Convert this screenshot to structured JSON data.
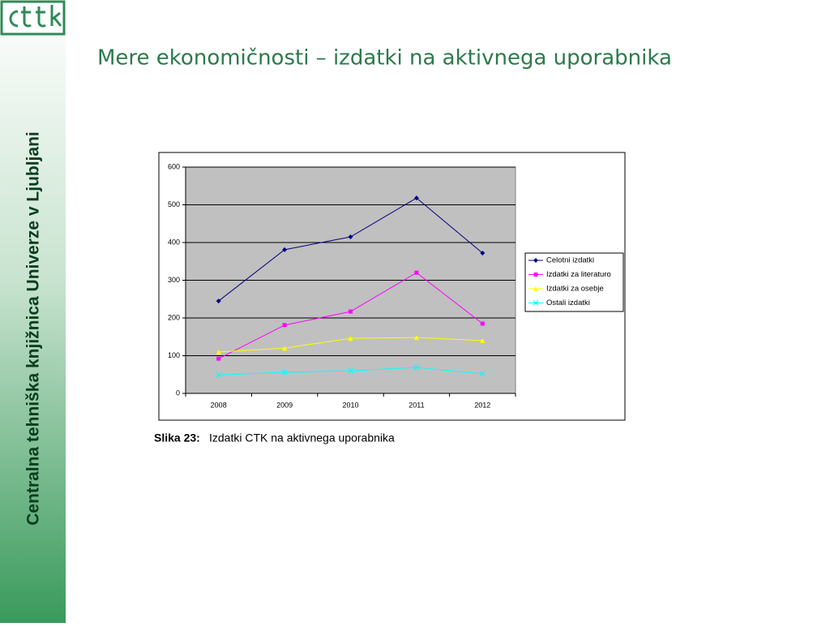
{
  "slide": {
    "title": "Mere ekonomičnosti – izdatki na aktivnega uporabnika",
    "sidebar_text": "Centralna tehniška knjižnica Univerze v Ljubljani",
    "caption": {
      "label": "Slika 23:",
      "text": "Izdatki CTK na aktivnega uporabnika"
    }
  },
  "chart_data": {
    "type": "line",
    "categories": [
      "2008",
      "2009",
      "2010",
      "2011",
      "2012"
    ],
    "series": [
      {
        "name": "Celotni izdatki",
        "color": "#000080",
        "marker": "diamond",
        "values": [
          245,
          381,
          415,
          518,
          372
        ]
      },
      {
        "name": "Izdatki za literaturo",
        "color": "#ff00ff",
        "marker": "square",
        "values": [
          92,
          181,
          217,
          320,
          185
        ]
      },
      {
        "name": "Izdatki za osebje",
        "color": "#ffff00",
        "marker": "triangle",
        "values": [
          110,
          120,
          146,
          148,
          140
        ]
      },
      {
        "name": "Ostali izdatki",
        "color": "#00ffff",
        "marker": "x",
        "values": [
          49,
          56,
          60,
          69,
          52
        ]
      }
    ],
    "ylim": [
      0,
      600
    ],
    "yticks": [
      0,
      100,
      200,
      300,
      400,
      500,
      600
    ],
    "grid": true,
    "legend": "right"
  }
}
